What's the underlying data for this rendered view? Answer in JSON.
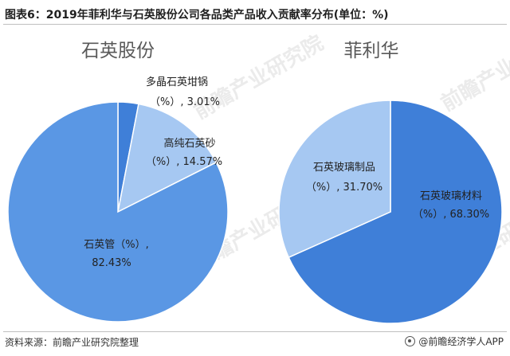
{
  "header": {
    "title": "图表6：2019年菲利华与石英股份公司各品类产品收入贡献率分布(单位：%)"
  },
  "footer": {
    "source": "资料来源：前瞻产业研究院整理",
    "brand": "@前瞻经济学人APP"
  },
  "watermark": {
    "text": "前瞻产业研究院"
  },
  "colors": {
    "dark_blue": "#3f7fd8",
    "light_blue": "#a6c8f2",
    "edge": "#ffffff"
  },
  "chart_data": [
    {
      "type": "pie",
      "title": "石英股份",
      "slices": [
        {
          "label": "多晶石英坩锅",
          "value": 3.01,
          "unit_text": "（%）, 3.01%",
          "color": "#3f7fd8"
        },
        {
          "label": "高纯石英砂",
          "value": 14.57,
          "unit_text": "（%）, 14.57%",
          "color": "#a6c8f2"
        },
        {
          "label": "石英管（%）,",
          "value": 82.43,
          "unit_text": "82.43%",
          "color": "#5a97e4"
        }
      ]
    },
    {
      "type": "pie",
      "title": "菲利华",
      "slices": [
        {
          "label": "石英玻璃材料",
          "value": 68.3,
          "unit_text": "（%）, 68.30%",
          "color": "#3f7fd8"
        },
        {
          "label": "石英玻璃制品",
          "value": 31.7,
          "unit_text": "（%）, 31.70%",
          "color": "#a6c8f2"
        }
      ]
    }
  ]
}
